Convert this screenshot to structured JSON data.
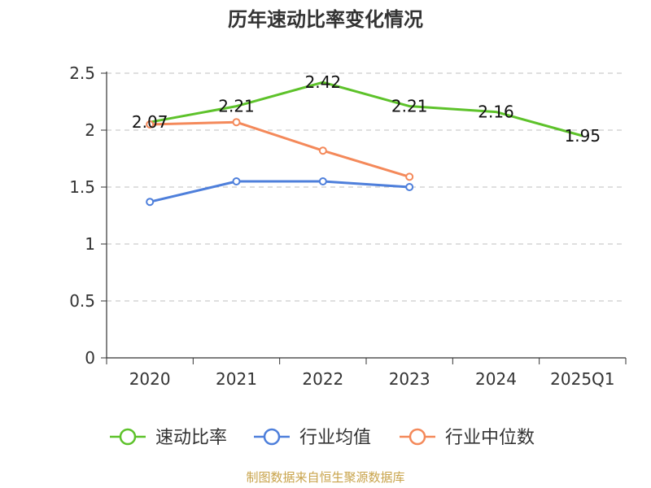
{
  "chart_data": {
    "type": "line",
    "title": "历年速动比率变化情况",
    "categories": [
      "2020",
      "2021",
      "2022",
      "2023",
      "2024",
      "2025Q1"
    ],
    "ylim": [
      0,
      2.5
    ],
    "yticks": [
      0,
      0.5,
      1,
      1.5,
      2,
      2.5
    ],
    "ytick_labels": [
      "0",
      "0.5",
      "1",
      "1.5",
      "2",
      "2.5"
    ],
    "grid": true,
    "legend_position": "bottom",
    "series": [
      {
        "name": "速动比率",
        "color": "#5dc22a",
        "values": [
          2.07,
          2.21,
          2.42,
          2.21,
          2.16,
          1.95
        ],
        "labels": [
          "2.07",
          "2.21",
          "2.42",
          "2.21",
          "2.16",
          "1.95"
        ],
        "show_labels": true
      },
      {
        "name": "行业均值",
        "color": "#4e7fdb",
        "values": [
          1.37,
          1.55,
          1.55,
          1.5,
          null,
          null
        ],
        "show_labels": false
      },
      {
        "name": "行业中位数",
        "color": "#f4895a",
        "values": [
          2.05,
          2.07,
          1.82,
          1.59,
          null,
          null
        ],
        "show_labels": false
      }
    ],
    "source": "制图数据来自恒生聚源数据库"
  }
}
